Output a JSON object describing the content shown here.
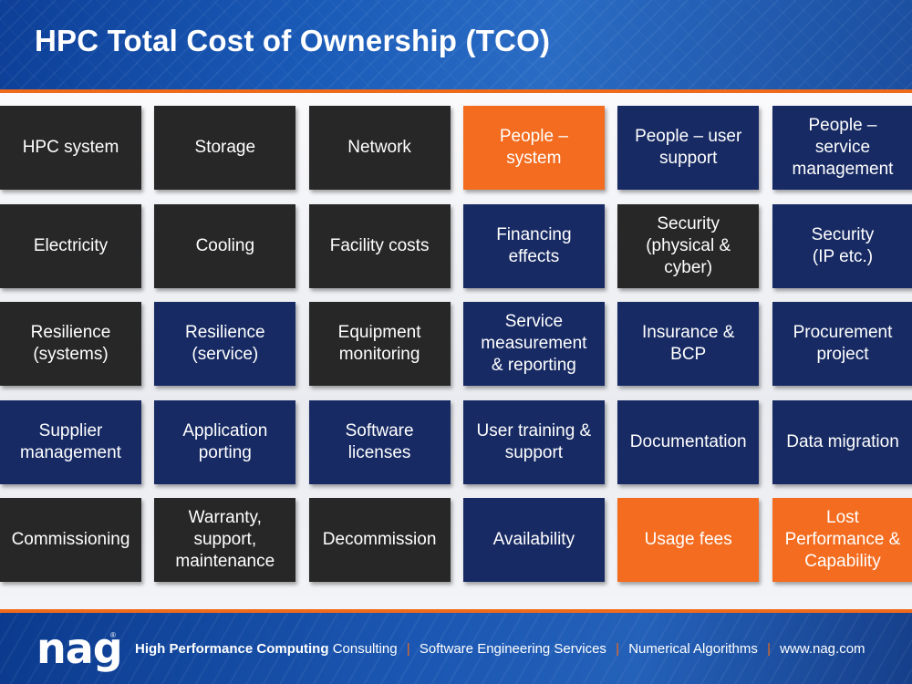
{
  "slide": {
    "title": "HPC Total Cost of Ownership (TCO)"
  },
  "tiles": [
    {
      "label": "HPC system",
      "color": "dark"
    },
    {
      "label": "Storage",
      "color": "dark"
    },
    {
      "label": "Network",
      "color": "dark"
    },
    {
      "label": "People –\nsystem",
      "color": "orange"
    },
    {
      "label": "People – user\nsupport",
      "color": "navy"
    },
    {
      "label": "People –\nservice\nmanagement",
      "color": "navy"
    },
    {
      "label": "Electricity",
      "color": "dark"
    },
    {
      "label": "Cooling",
      "color": "dark"
    },
    {
      "label": "Facility costs",
      "color": "dark"
    },
    {
      "label": "Financing\neffects",
      "color": "navy"
    },
    {
      "label": "Security\n(physical &\ncyber)",
      "color": "dark"
    },
    {
      "label": "Security\n(IP etc.)",
      "color": "navy"
    },
    {
      "label": "Resilience\n(systems)",
      "color": "dark"
    },
    {
      "label": "Resilience\n(service)",
      "color": "navy"
    },
    {
      "label": "Equipment\nmonitoring",
      "color": "dark"
    },
    {
      "label": "Service\nmeasurement\n& reporting",
      "color": "navy"
    },
    {
      "label": "Insurance &\nBCP",
      "color": "navy"
    },
    {
      "label": "Procurement\nproject",
      "color": "navy"
    },
    {
      "label": "Supplier\nmanagement",
      "color": "navy"
    },
    {
      "label": "Application\nporting",
      "color": "navy"
    },
    {
      "label": "Software\nlicenses",
      "color": "navy"
    },
    {
      "label": "User training &\nsupport",
      "color": "navy"
    },
    {
      "label": "Documentation",
      "color": "navy"
    },
    {
      "label": "Data migration",
      "color": "navy"
    },
    {
      "label": "Commissioning",
      "color": "dark"
    },
    {
      "label": "Warranty,\nsupport,\nmaintenance",
      "color": "dark"
    },
    {
      "label": "Decommission",
      "color": "dark"
    },
    {
      "label": "Availability",
      "color": "navy"
    },
    {
      "label": "Usage fees",
      "color": "orange"
    },
    {
      "label": "Lost\nPerformance &\nCapability",
      "color": "orange"
    }
  ],
  "footer": {
    "logo": "nag",
    "logo_mark": "®",
    "tagline_strong": "High Performance Computing",
    "tagline_items": [
      "Consulting",
      "Software Engineering Services",
      "Numerical Algorithms",
      "www.nag.com"
    ],
    "separator": "|"
  },
  "colors": {
    "dark": "#272727",
    "navy": "#172a63",
    "orange": "#f36c1f",
    "header_blue": "#1a5bb8",
    "rule_orange": "#f06a1b"
  }
}
